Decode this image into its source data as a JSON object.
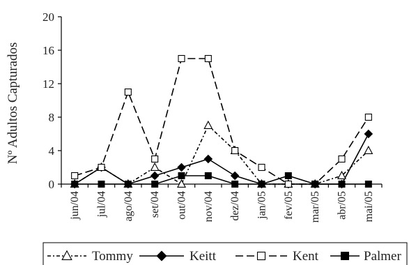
{
  "chart_data": {
    "type": "line",
    "title": "",
    "xlabel": "",
    "ylabel": "Nº Adultos Capturados",
    "ylim": [
      0,
      20
    ],
    "yticks": [
      0,
      4,
      8,
      12,
      16,
      20
    ],
    "grid": false,
    "legend_position": "bottom",
    "categories": [
      "jun/04",
      "jul/04",
      "ago/04",
      "set/04",
      "out/04",
      "nov/04",
      "dez/04",
      "jan/05",
      "fev/05",
      "mar/05",
      "abr/05",
      "mai/05"
    ],
    "series": [
      {
        "name": "Tommy",
        "line_style": "dash-dot",
        "marker": "open-triangle",
        "values": [
          0,
          2,
          0,
          2,
          0,
          7,
          4,
          0,
          0,
          0,
          1,
          4
        ]
      },
      {
        "name": "Keitt",
        "line_style": "solid",
        "marker": "filled-diamond",
        "values": [
          0,
          2,
          0,
          1,
          2,
          3,
          1,
          0,
          0,
          0,
          0,
          6
        ]
      },
      {
        "name": "Kent",
        "line_style": "long-dash",
        "marker": "open-square",
        "values": [
          1,
          2,
          11,
          3,
          15,
          15,
          4,
          2,
          0,
          0,
          3,
          8
        ]
      },
      {
        "name": "Palmer",
        "line_style": "solid",
        "marker": "filled-square",
        "values": [
          0,
          0,
          0,
          0,
          1,
          1,
          0,
          0,
          1,
          0,
          0,
          0
        ]
      }
    ]
  }
}
